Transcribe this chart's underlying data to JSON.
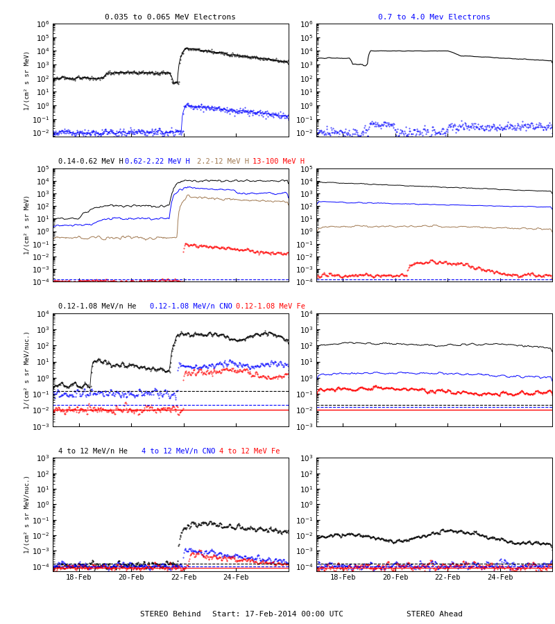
{
  "titles_row1": [
    [
      "0.035 to 0.065 MeV Electrons",
      "black"
    ],
    [
      "0.7 to 4.0 Mev Electrons",
      "blue"
    ]
  ],
  "titles_row2": [
    [
      "0.14-0.62 MeV H",
      "black"
    ],
    [
      "0.62-2.22 MeV H",
      "blue"
    ],
    [
      "2.2-12 MeV H",
      "brown"
    ],
    [
      "13-100 MeV H",
      "red"
    ]
  ],
  "titles_row3": [
    [
      "0.12-1.08 MeV/n He",
      "black"
    ],
    [
      "0.12-1.08 MeV/n CNO",
      "blue"
    ],
    [
      "0.12-1.08 MeV Fe",
      "red"
    ]
  ],
  "titles_row4": [
    [
      "4 to 12 MeV/n He",
      "black"
    ],
    [
      "4 to 12 MeV/n CNO",
      "blue"
    ],
    [
      "4 to 12 MeV Fe",
      "red"
    ]
  ],
  "xlabel_left": "STEREO Behind",
  "xlabel_center": "Start: 17-Feb-2014 00:00 UTC",
  "xlabel_right": "STEREO Ahead",
  "ylabel_MeV": "1/(cm² s sr MeV)",
  "ylabel_nuc": "1/(cm² s sr MeV/nuc.)",
  "xtick_labels": [
    "18-Feb",
    "20-Feb",
    "22-Feb",
    "24-Feb"
  ],
  "xtick_days": [
    1,
    3,
    5,
    7
  ],
  "n_days": 9,
  "colors": {
    "black": "#000000",
    "blue": "#0000ff",
    "brown": "#a07850",
    "red": "#ff0000"
  },
  "ylims": {
    "r1": [
      0.005,
      1000000.0
    ],
    "r2": [
      0.0001,
      100000.0
    ],
    "r3": [
      0.001,
      10000.0
    ],
    "r4": [
      5e-05,
      1000.0
    ]
  }
}
